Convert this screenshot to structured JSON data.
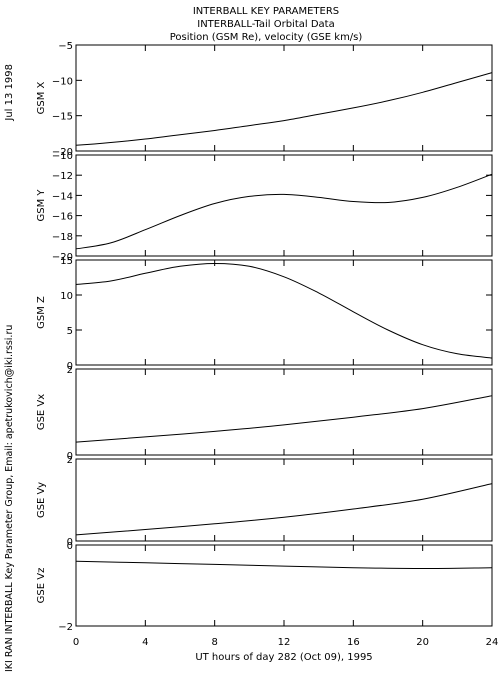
{
  "header": {
    "title": "INTERBALL KEY PARAMETERS",
    "subtitle": "INTERBALL-Tail Orbital Data",
    "subtitle2": "Position (GSM Re), velocity (GSE km/s)"
  },
  "side": {
    "date": "Jul 13 1998",
    "credit": "IKI RAN INTERBALL Key Parameter Group, Email: apetrukovich@iki.rssi.ru"
  },
  "colors": {
    "line": "#000000",
    "background": "#ffffff"
  },
  "chart_data": {
    "type": "line",
    "xlabel": "UT hours of day 282 (Oct 09), 1995",
    "xlim": [
      0,
      24
    ],
    "xticks": [
      0,
      4,
      8,
      12,
      16,
      20,
      24
    ],
    "grid": false,
    "panels": [
      {
        "ylabel": "GSM X",
        "ylim": [
          -20,
          -5
        ],
        "yticks": [
          -20,
          -15,
          -10,
          -5
        ],
        "x": [
          0,
          2,
          4,
          6,
          8,
          10,
          12,
          14,
          16,
          18,
          20,
          22,
          24
        ],
        "y": [
          -19.2,
          -18.8,
          -18.3,
          -17.7,
          -17.1,
          -16.4,
          -15.7,
          -14.8,
          -13.9,
          -12.9,
          -11.7,
          -10.3,
          -8.9
        ]
      },
      {
        "ylabel": "GSM Y",
        "ylim": [
          -20,
          -10
        ],
        "yticks": [
          -20,
          -18,
          -16,
          -14,
          -12,
          -10
        ],
        "x": [
          0,
          2,
          4,
          6,
          8,
          10,
          12,
          14,
          16,
          18,
          20,
          22,
          24
        ],
        "y": [
          -19.3,
          -18.7,
          -17.4,
          -16.0,
          -14.8,
          -14.1,
          -13.9,
          -14.2,
          -14.6,
          -14.7,
          -14.2,
          -13.2,
          -11.9
        ]
      },
      {
        "ylabel": "GSM Z",
        "ylim": [
          0,
          15
        ],
        "yticks": [
          0,
          5,
          10,
          15
        ],
        "x": [
          0,
          2,
          4,
          6,
          8,
          10,
          12,
          14,
          16,
          18,
          20,
          22,
          24
        ],
        "y": [
          11.5,
          12.0,
          13.1,
          14.1,
          14.5,
          14.1,
          12.6,
          10.3,
          7.6,
          5.0,
          2.9,
          1.6,
          1.0
        ]
      },
      {
        "ylabel": "GSE Vx",
        "ylim": [
          0,
          2
        ],
        "yticks": [
          0,
          2
        ],
        "x": [
          0,
          4,
          8,
          12,
          16,
          20,
          24
        ],
        "y": [
          0.3,
          0.42,
          0.55,
          0.7,
          0.88,
          1.08,
          1.38
        ]
      },
      {
        "ylabel": "GSE Vy",
        "ylim": [
          0,
          2
        ],
        "yticks": [
          0,
          2
        ],
        "x": [
          0,
          4,
          8,
          12,
          16,
          20,
          24
        ],
        "y": [
          0.15,
          0.28,
          0.42,
          0.58,
          0.78,
          1.02,
          1.4
        ]
      },
      {
        "ylabel": "GSE Vz",
        "ylim": [
          -2,
          0
        ],
        "yticks": [
          -2,
          0
        ],
        "x": [
          0,
          4,
          8,
          12,
          16,
          20,
          24
        ],
        "y": [
          -0.4,
          -0.44,
          -0.48,
          -0.52,
          -0.56,
          -0.58,
          -0.56
        ]
      }
    ]
  }
}
